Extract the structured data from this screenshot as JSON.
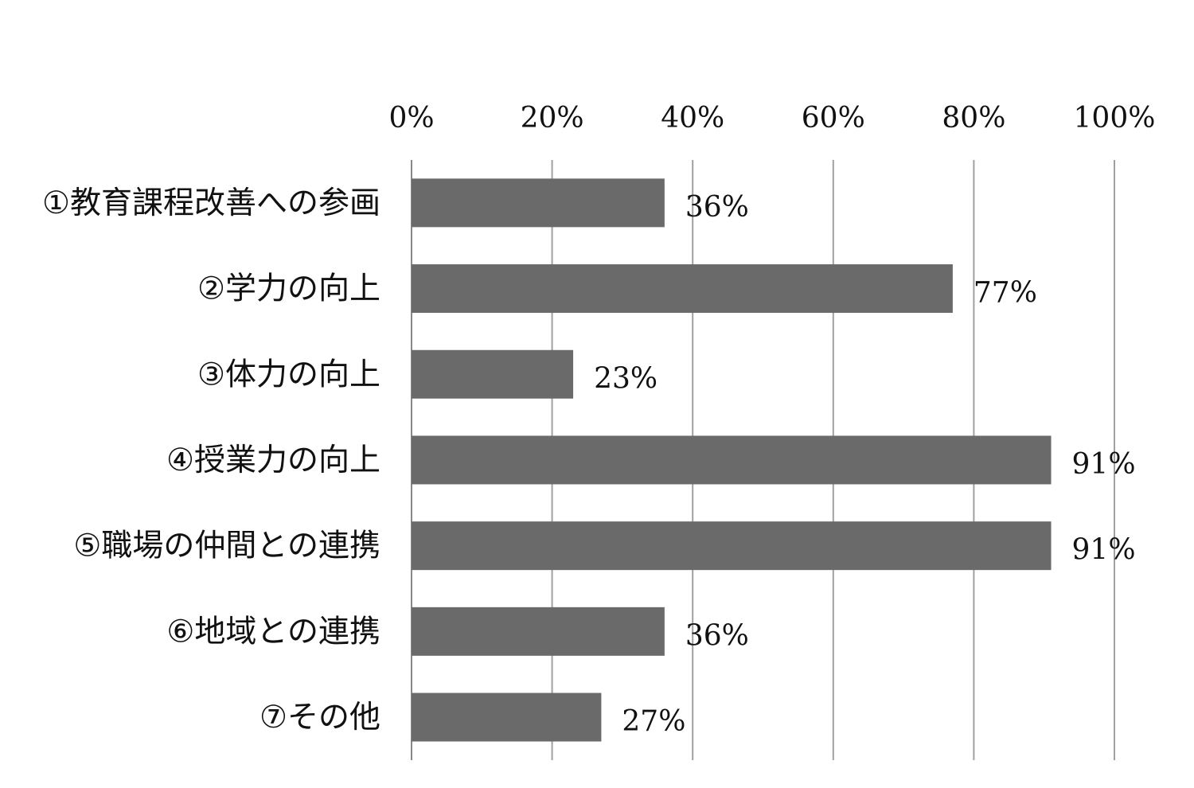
{
  "chart_data": {
    "type": "bar",
    "orientation": "horizontal",
    "categories": [
      "①教育課程改善への参画",
      "②学力の向上",
      "③体力の向上",
      "④授業力の向上",
      "⑤職場の仲間との連携",
      "⑥地域との連携",
      "⑦その他"
    ],
    "values": [
      36,
      77,
      23,
      91,
      91,
      36,
      27
    ],
    "data_labels": [
      "36%",
      "77%",
      "23%",
      "91%",
      "91%",
      "36%",
      "27%"
    ],
    "xlim": [
      0,
      100
    ],
    "ticks": [
      0,
      20,
      40,
      60,
      80,
      100
    ],
    "tick_labels": [
      "0%",
      "20%",
      "40%",
      "60%",
      "80%",
      "100%"
    ],
    "x_axis_position": "top",
    "grid": true,
    "legend": "none",
    "colors": {
      "bar": "#6a6a6a",
      "grid": "#a0a0a0",
      "axis": "#888888",
      "text": "#111111"
    }
  }
}
